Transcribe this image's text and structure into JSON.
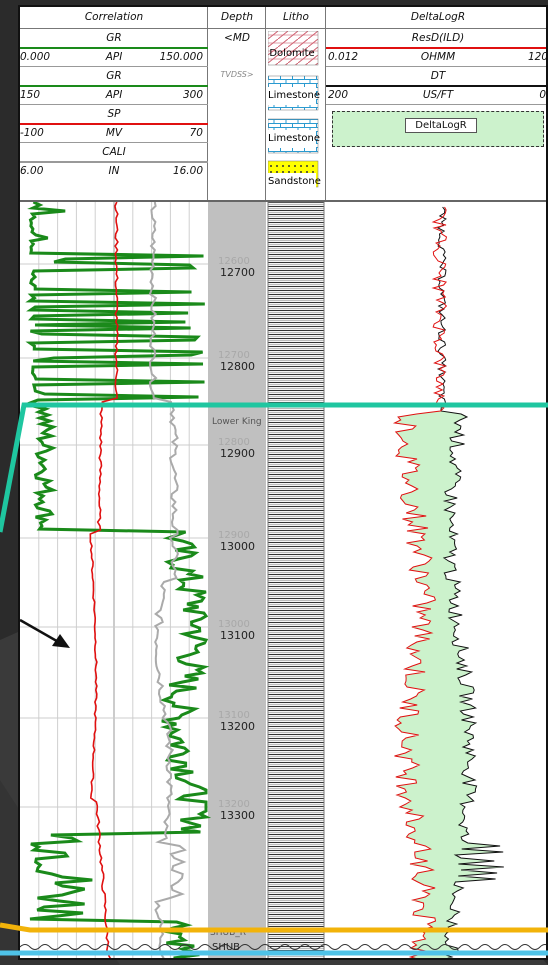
{
  "header": {
    "correlation": {
      "title": "Correlation",
      "curves": [
        {
          "name": "GR",
          "unit": "API",
          "min": "0.000",
          "max": "150.000",
          "color": "#1a8a1a"
        },
        {
          "name": "GR",
          "unit": "API",
          "min": "150",
          "max": "300",
          "color": "#1a8a1a"
        },
        {
          "name": "SP",
          "unit": "MV",
          "min": "-100",
          "max": "70",
          "color": "#e01010"
        },
        {
          "name": "CALI",
          "unit": "IN",
          "min": "6.00",
          "max": "16.00",
          "color": "#999999"
        }
      ]
    },
    "depth": {
      "title": "Depth",
      "md": "<MD",
      "tvdss": "TVDSS>"
    },
    "litho": {
      "title": "Litho",
      "items": [
        {
          "label": "Dolomite",
          "pattern": "dolomite"
        },
        {
          "label": "Limestone",
          "pattern": "limestone"
        },
        {
          "label": "Limestone",
          "pattern": "limestone"
        },
        {
          "label": "Sandstone",
          "pattern": "sandstone"
        }
      ]
    },
    "deltalogr": {
      "title": "DeltaLogR",
      "curves": [
        {
          "name": "ResD(ILD)",
          "unit": "OHMM",
          "min": "0.012",
          "max": "120",
          "color": "#e01010"
        },
        {
          "name": "DT",
          "unit": "US/FT",
          "min": "200",
          "max": "0",
          "color": "#111111"
        }
      ],
      "fill_label": "DeltaLogR"
    }
  },
  "depth_labels": [
    "12700",
    "12800",
    "12900",
    "13000",
    "13100",
    "13200",
    "13300"
  ],
  "tvdss_labels": [
    "12600",
    "12700",
    "12800",
    "12900",
    "13000",
    "13100",
    "13200",
    "13300"
  ],
  "markers": [
    {
      "label": "Lower King",
      "color": "#1fc6a0"
    },
    {
      "label": "SHUB_R",
      "color": "#f2b30a"
    },
    {
      "label": "SHUB",
      "color": "#4fc3e8"
    }
  ],
  "colors": {
    "gr": "#1a8a1a",
    "sp": "#e01010",
    "cali": "#aaaaaa",
    "fill": "#ccf2cc",
    "depth_track": "#c0c0c0",
    "arrow": "#111111"
  }
}
